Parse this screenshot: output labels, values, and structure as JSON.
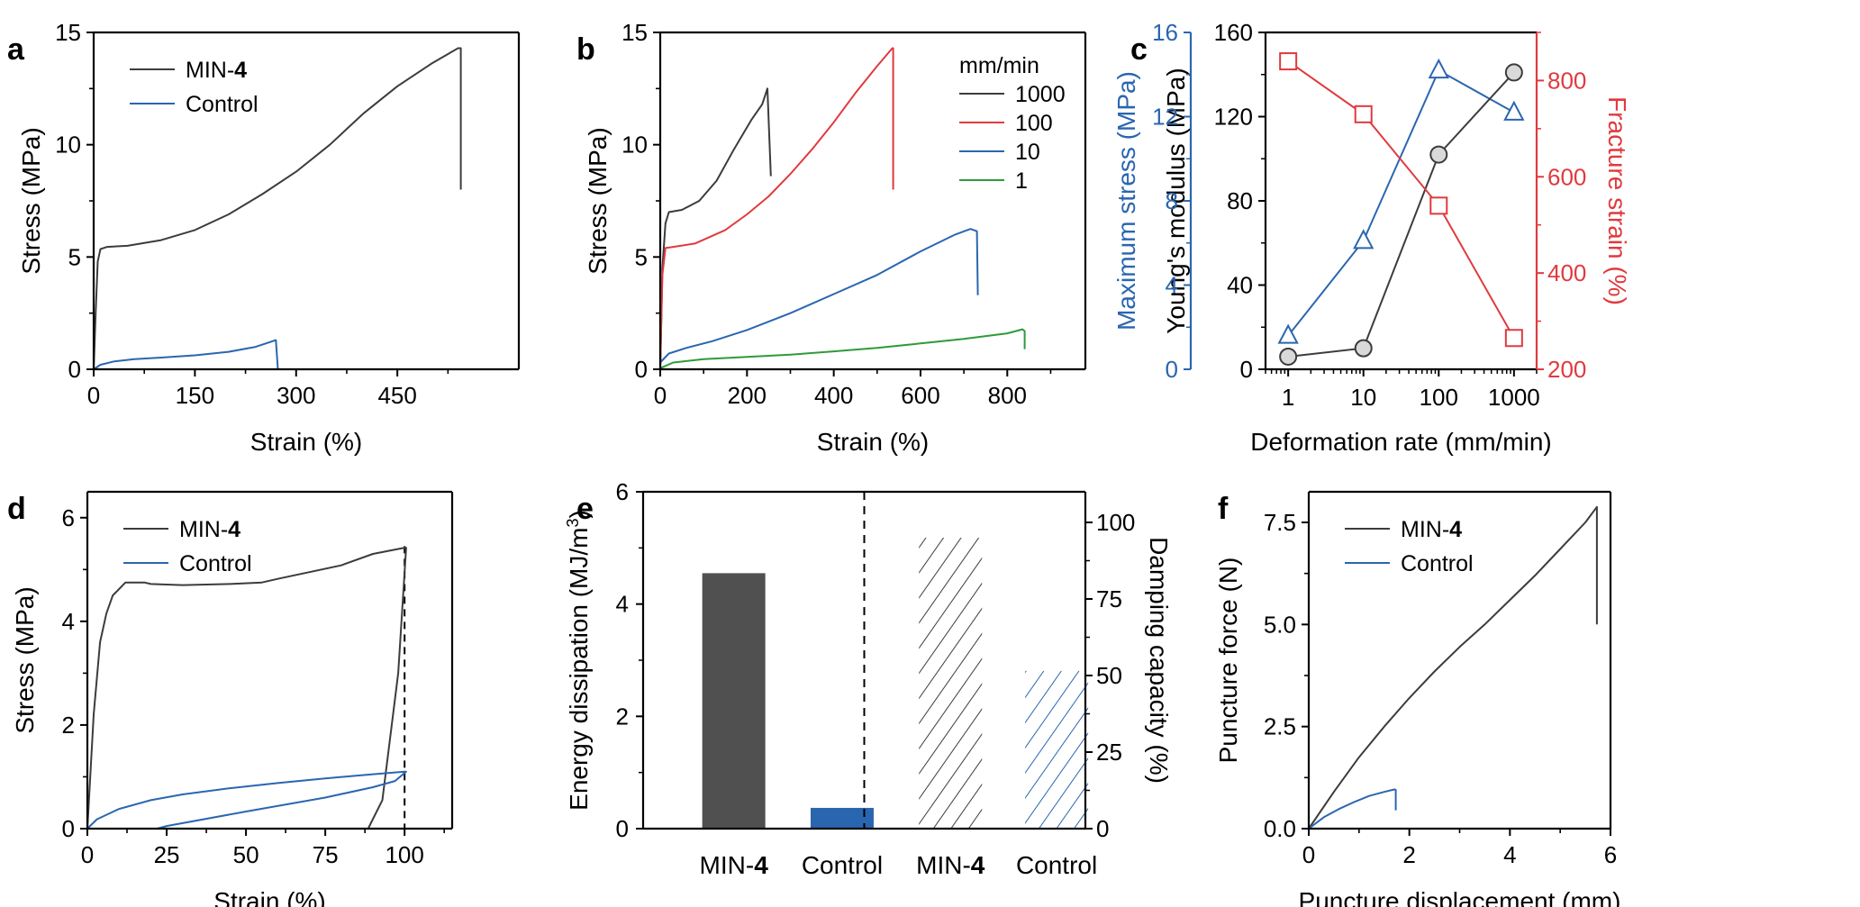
{
  "colors": {
    "black": "#3c3c3c",
    "blue": "#2a66b0",
    "red": "#e03a3e",
    "green": "#2f9a3a",
    "dark_bar": "#505050",
    "marker_fill": "#d9d9d9"
  },
  "chart_data": [
    {
      "id": "a",
      "panel_label": "a",
      "type": "line",
      "xlabel": "Strain (%)",
      "ylabel": "Stress (MPa)",
      "xlim": [
        0,
        630
      ],
      "ylim": [
        0,
        15
      ],
      "xticks": [
        0,
        150,
        300,
        450
      ],
      "yticks": [
        0,
        5,
        10,
        15
      ],
      "legend": {
        "placement": "top-left",
        "entries": [
          {
            "prefix": "MIN-",
            "bold": "4",
            "color_key": "black"
          },
          {
            "prefix": "Control",
            "bold": "",
            "color_key": "blue"
          }
        ]
      },
      "series": [
        {
          "name": "MIN-4",
          "color_key": "black",
          "x": [
            0,
            3,
            6,
            10,
            20,
            50,
            100,
            150,
            200,
            250,
            300,
            350,
            400,
            450,
            500,
            540,
            544,
            544
          ],
          "y": [
            0,
            2.5,
            4.8,
            5.35,
            5.45,
            5.5,
            5.75,
            6.2,
            6.9,
            7.8,
            8.8,
            10.0,
            11.4,
            12.6,
            13.6,
            14.3,
            14.3,
            8.0
          ]
        },
        {
          "name": "Control",
          "color_key": "blue",
          "x": [
            0,
            10,
            30,
            60,
            100,
            150,
            200,
            240,
            270,
            273
          ],
          "y": [
            0,
            0.2,
            0.35,
            0.45,
            0.52,
            0.62,
            0.78,
            1.0,
            1.3,
            0
          ]
        }
      ]
    },
    {
      "id": "b",
      "panel_label": "b",
      "type": "line",
      "xlabel": "Strain (%)",
      "ylabel": "Stress (MPa)",
      "xlim": [
        0,
        980
      ],
      "ylim": [
        0,
        15
      ],
      "xticks": [
        0,
        200,
        400,
        600,
        800
      ],
      "yticks": [
        0,
        5,
        10,
        15
      ],
      "legend": {
        "placement": "top-right",
        "title": "mm/min",
        "entries": [
          {
            "prefix": "1000",
            "bold": "",
            "color_key": "black"
          },
          {
            "prefix": "100",
            "bold": "",
            "color_key": "red"
          },
          {
            "prefix": "10",
            "bold": "",
            "color_key": "blue"
          },
          {
            "prefix": "1",
            "bold": "",
            "color_key": "green"
          }
        ]
      },
      "series": [
        {
          "name": "1000",
          "color_key": "black",
          "x": [
            0,
            5,
            12,
            20,
            50,
            90,
            130,
            170,
            210,
            235,
            247,
            255
          ],
          "y": [
            0,
            4.5,
            6.5,
            7.0,
            7.1,
            7.5,
            8.4,
            9.8,
            11.1,
            11.8,
            12.5,
            8.6
          ]
        },
        {
          "name": "100",
          "color_key": "red",
          "x": [
            0,
            5,
            12,
            30,
            80,
            150,
            200,
            250,
            300,
            350,
            400,
            450,
            500,
            535,
            537,
            537
          ],
          "y": [
            0,
            4.2,
            5.4,
            5.45,
            5.6,
            6.2,
            6.9,
            7.7,
            8.7,
            9.8,
            11.0,
            12.3,
            13.5,
            14.3,
            14.3,
            8.0
          ]
        },
        {
          "name": "10",
          "color_key": "blue",
          "x": [
            0,
            20,
            60,
            120,
            200,
            300,
            400,
            500,
            600,
            680,
            715,
            730,
            732
          ],
          "y": [
            0.3,
            0.7,
            0.95,
            1.25,
            1.75,
            2.5,
            3.35,
            4.2,
            5.25,
            6.0,
            6.25,
            6.15,
            3.3
          ]
        },
        {
          "name": "1",
          "color_key": "green",
          "x": [
            0,
            30,
            100,
            200,
            300,
            400,
            500,
            600,
            700,
            800,
            835,
            840,
            840
          ],
          "y": [
            0.05,
            0.3,
            0.45,
            0.55,
            0.65,
            0.8,
            0.95,
            1.15,
            1.35,
            1.6,
            1.78,
            1.7,
            0.9
          ]
        }
      ]
    },
    {
      "id": "c",
      "panel_label": "c",
      "type": "line",
      "xlabel": "Deformation rate (mm/min)",
      "xscale": "log",
      "xlim": [
        0.5,
        2000
      ],
      "xticks": [
        1,
        10,
        100,
        1000
      ],
      "axes": {
        "max_stress": {
          "label": "Maximum stress (MPa)",
          "ylim": [
            0,
            16
          ],
          "yticks": [
            0,
            4,
            8,
            12,
            16
          ],
          "color_key": "blue",
          "side": "far-left"
        },
        "youngs": {
          "label": "Young's modulus (MPa)",
          "ylim": [
            0,
            160
          ],
          "yticks": [
            0,
            40,
            80,
            120,
            160
          ],
          "color_key": "black",
          "side": "left"
        },
        "fracture": {
          "label": "Fracture strain (%)",
          "ylim": [
            200,
            900
          ],
          "yticks": [
            200,
            400,
            600,
            800
          ],
          "color_key": "red",
          "side": "right"
        }
      },
      "series": [
        {
          "name": "Maximum stress",
          "axis": "max_stress",
          "marker": "triangle",
          "color_key": "blue",
          "x": [
            1,
            10,
            100,
            1000
          ],
          "y": [
            1.6,
            6.1,
            14.2,
            12.2
          ]
        },
        {
          "name": "Young's modulus",
          "axis": "youngs",
          "marker": "circle",
          "color_key": "black",
          "x": [
            1,
            10,
            100,
            1000
          ],
          "y": [
            6,
            10,
            102,
            141
          ]
        },
        {
          "name": "Fracture strain",
          "axis": "fracture",
          "marker": "square",
          "color_key": "red",
          "x": [
            1,
            10,
            100,
            1000
          ],
          "y": [
            840,
            730,
            540,
            265
          ]
        }
      ]
    },
    {
      "id": "d",
      "panel_label": "d",
      "type": "line",
      "xlabel": "Strain (%)",
      "ylabel": "Stress (MPa)",
      "xlim": [
        0,
        115
      ],
      "ylim": [
        0,
        6.5
      ],
      "xticks": [
        0,
        25,
        50,
        75,
        100
      ],
      "yticks": [
        0,
        2,
        4,
        6
      ],
      "reference_line": {
        "x": 100,
        "style": "dashed"
      },
      "legend": {
        "placement": "top-left",
        "entries": [
          {
            "prefix": "MIN-",
            "bold": "4",
            "color_key": "black"
          },
          {
            "prefix": "Control",
            "bold": "",
            "color_key": "blue"
          }
        ]
      },
      "series": [
        {
          "name": "MIN-4",
          "color_key": "black",
          "x": [
            0,
            2,
            4,
            6,
            8,
            12,
            18,
            20,
            30,
            45,
            55,
            60,
            70,
            80,
            90,
            100,
            100.5,
            98,
            93,
            88.5,
            0
          ],
          "y": [
            0,
            2.2,
            3.6,
            4.15,
            4.5,
            4.75,
            4.75,
            4.72,
            4.7,
            4.72,
            4.75,
            4.82,
            4.95,
            5.08,
            5.3,
            5.42,
            5.42,
            3.0,
            0.55,
            0,
            0
          ]
        },
        {
          "name": "Control",
          "color_key": "blue",
          "x": [
            0,
            3,
            10,
            20,
            30,
            45,
            60,
            75,
            90,
            100,
            100.5,
            97,
            90,
            75,
            50,
            25,
            22,
            0
          ],
          "y": [
            0,
            0.18,
            0.38,
            0.55,
            0.66,
            0.78,
            0.88,
            0.97,
            1.05,
            1.1,
            1.1,
            0.92,
            0.8,
            0.6,
            0.33,
            0.05,
            0,
            0
          ]
        }
      ]
    },
    {
      "id": "e",
      "panel_label": "e",
      "type": "bar",
      "ylabel": "Energy dissipation (MJ/m",
      "ylabel_sup": "3",
      "ylabel_close": ")",
      "y2label": "Damping capacity (%)",
      "ylim": [
        0,
        6
      ],
      "y2lim": [
        0,
        110
      ],
      "yticks": [
        0,
        2,
        4,
        6
      ],
      "y2ticks": [
        0,
        25,
        50,
        75,
        100
      ],
      "categories": [
        {
          "prefix": "MIN-",
          "bold": "4"
        },
        {
          "prefix": "Control",
          "bold": ""
        },
        {
          "prefix": "MIN-",
          "bold": "4"
        },
        {
          "prefix": "Control",
          "bold": ""
        }
      ],
      "series": [
        {
          "name": "Energy dissipation",
          "axis": "left",
          "style": "solid",
          "values": [
            4.55,
            0.37,
            null,
            null
          ],
          "color_keys": [
            "dark_bar",
            "blue"
          ]
        },
        {
          "name": "Damping capacity",
          "axis": "right",
          "style": "hatched",
          "values": [
            null,
            null,
            95,
            51.5
          ],
          "color_keys": [
            "black",
            "blue"
          ]
        }
      ],
      "separator": "dashed vertical line between groups"
    },
    {
      "id": "f",
      "panel_label": "f",
      "type": "line",
      "xlabel": "Puncture displacement (mm)",
      "ylabel": "Puncture force (N)",
      "xlim": [
        0,
        6
      ],
      "ylim": [
        0,
        8.25
      ],
      "xticks": [
        0,
        2,
        4,
        6
      ],
      "yticks": [
        0.0,
        2.5,
        5.0,
        7.5
      ],
      "ytick_labels": [
        "0.0",
        "2.5",
        "5.0",
        "7.5"
      ],
      "legend": {
        "placement": "top-left",
        "entries": [
          {
            "prefix": "MIN-",
            "bold": "4",
            "color_key": "black"
          },
          {
            "prefix": "Control",
            "bold": "",
            "color_key": "blue"
          }
        ]
      },
      "series": [
        {
          "name": "MIN-4",
          "color_key": "black",
          "x": [
            0,
            0.5,
            1,
            1.5,
            2,
            2.5,
            3,
            3.5,
            4,
            4.5,
            5,
            5.5,
            5.73,
            5.73
          ],
          "y": [
            0,
            0.9,
            1.75,
            2.5,
            3.2,
            3.85,
            4.45,
            5.0,
            5.6,
            6.2,
            6.85,
            7.5,
            7.88,
            5.0
          ]
        },
        {
          "name": "Control",
          "color_key": "blue",
          "x": [
            0,
            0.3,
            0.6,
            0.9,
            1.2,
            1.5,
            1.7,
            1.73,
            1.73
          ],
          "y": [
            0,
            0.28,
            0.48,
            0.65,
            0.8,
            0.9,
            0.96,
            0.95,
            0.45
          ]
        }
      ]
    }
  ]
}
